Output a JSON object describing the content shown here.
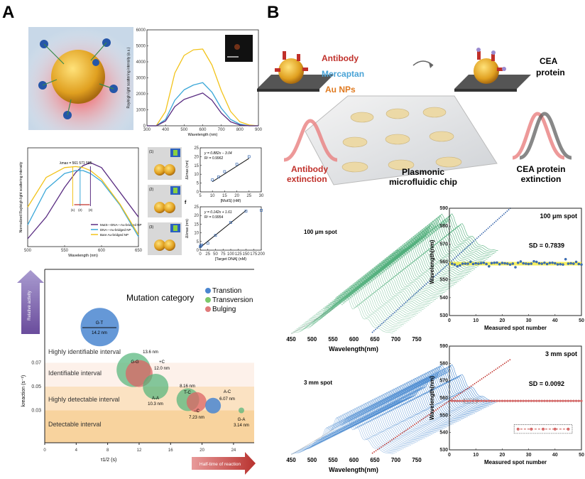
{
  "panels": {
    "a": "A",
    "b": "B"
  },
  "colors": {
    "yellow": "#f2c31a",
    "blue": "#3aa7d8",
    "purple": "#5a2d82",
    "green": "#4fae7a",
    "red": "#d9534f",
    "navy": "#2f5fa8"
  },
  "b_illustration": {
    "antibody": "Antibody",
    "mercaptan": "Mercaptan",
    "au_nps": "Au NPs",
    "cea_protein_1": "CEA",
    "cea_protein_2": "protein",
    "antibody_ext_1": "Antibody",
    "antibody_ext_2": "extinction",
    "chip_1": "Plasmonic",
    "chip_2": "microfluidic chip",
    "cea_ext_1": "CEA protein",
    "cea_ext_2": "extinction"
  },
  "chart_data": [
    {
      "type": "line",
      "xlabel": "Wavelength (nm)",
      "ylabel": "Rayleigh light scattering intensity (a.u.)",
      "xlim": [
        300,
        900
      ],
      "ylim": [
        0,
        6000
      ],
      "xticks": [
        "300",
        "400",
        "500",
        "600",
        "700",
        "800",
        "900"
      ],
      "yticks": [
        "0",
        "1000",
        "2000",
        "3000",
        "4000",
        "5000",
        "6000"
      ],
      "x": [
        300,
        350,
        400,
        450,
        500,
        550,
        600,
        650,
        700,
        750,
        800,
        850,
        900
      ],
      "series": [
        {
          "name": "yellow",
          "color": "#f2c31a",
          "values": [
            0,
            0,
            900,
            3300,
            4400,
            4750,
            4800,
            3800,
            2200,
            900,
            250,
            50,
            0
          ]
        },
        {
          "name": "blue",
          "color": "#3aa7d8",
          "values": [
            0,
            0,
            400,
            1600,
            2250,
            2550,
            2700,
            2100,
            1100,
            400,
            100,
            0,
            0
          ]
        },
        {
          "name": "purple",
          "color": "#5a2d82",
          "values": [
            0,
            0,
            300,
            1200,
            1650,
            1850,
            2050,
            1600,
            800,
            250,
            50,
            0,
            0
          ]
        }
      ]
    },
    {
      "type": "line",
      "xlabel": "Wavelength (nm)",
      "ylabel": "Normalized Rayleigh light scattering intensity",
      "xlim": [
        500,
        650
      ],
      "ylim": [
        0,
        1
      ],
      "xticks": [
        "500",
        "550",
        "600",
        "650"
      ],
      "lambda_label": "λmax = 561  571   585",
      "steps": [
        "(1)",
        "(2)",
        "(3)"
      ],
      "x": [
        500,
        525,
        550,
        565,
        575,
        585,
        600,
        625,
        650
      ],
      "series": [
        {
          "name": "MutS—DNA—Au-bridged NP",
          "color": "#5a2d82",
          "values": [
            0.08,
            0.3,
            0.6,
            0.75,
            0.82,
            0.85,
            0.8,
            0.55,
            0.3
          ]
        },
        {
          "name": "DNA—Au-bridged NP",
          "color": "#3aa7d8",
          "values": [
            0.22,
            0.58,
            0.74,
            0.77,
            0.77,
            0.74,
            0.66,
            0.42,
            0.1
          ]
        },
        {
          "name": "Bare Au-bridged NP",
          "color": "#f2c31a",
          "values": [
            0.4,
            0.7,
            0.8,
            0.81,
            0.8,
            0.77,
            0.68,
            0.43,
            0.12
          ]
        }
      ]
    },
    {
      "type": "scatter",
      "xlabel": "[MutS] (nM)",
      "ylabel": "Δλmax (nm)",
      "xlim": [
        5,
        30
      ],
      "ylim": [
        0,
        25
      ],
      "xticks": [
        "5",
        "10",
        "15",
        "20",
        "25",
        "30"
      ],
      "yticks": [
        "0",
        "5",
        "10",
        "15",
        "20",
        "25"
      ],
      "equation": "y = 0.882x − 3.04",
      "r2": "R² = 0.9962",
      "x": [
        10,
        12.5,
        15,
        20,
        25
      ],
      "values": [
        6.8,
        8.5,
        11.5,
        15.7,
        20
      ],
      "fit": [
        0.882,
        -3.04
      ],
      "images": [
        "(1)",
        "(2)",
        "(3)"
      ]
    },
    {
      "type": "scatter",
      "panel": "f",
      "xlabel": "[Target DNA] (nM)",
      "ylabel": "Δλmax (nm)",
      "xlim": [
        0,
        200
      ],
      "ylim": [
        0,
        25
      ],
      "xticks": [
        "0",
        "25",
        "50",
        "75",
        "100",
        "125",
        "150",
        "175",
        "200"
      ],
      "yticks": [
        "0",
        "5",
        "10",
        "15",
        "20",
        "25"
      ],
      "equation": "y = 0.142x + 1.61",
      "r2": "R² = 0.9954",
      "x": [
        0,
        2,
        5,
        25,
        50,
        100,
        150,
        200
      ],
      "values": [
        2,
        2.5,
        3,
        4,
        8.5,
        16,
        22.5,
        23
      ],
      "fit": [
        0.142,
        1.61
      ]
    },
    {
      "type": "scatter",
      "title": "Mutation category",
      "xlabel": "τ1/2 (s)",
      "ylabel": "kreaction (s⁻¹)",
      "xlim": [
        0,
        26.7
      ],
      "ylim": [
        0.003,
        0.148
      ],
      "xticks": [
        "0",
        "4",
        "8",
        "12",
        "16",
        "20",
        "24"
      ],
      "yticks": [
        "0.03",
        "0.05",
        "0.07"
      ],
      "legend": [
        {
          "name": "Transtion",
          "color": "#4a86d0"
        },
        {
          "name": "Transversion",
          "color": "#7cc86a"
        },
        {
          "name": "Bulging",
          "color": "#e07a7a"
        }
      ],
      "intervals": [
        "Highly identifiable interval",
        "Identifiable interval",
        "Highly detectable interval",
        "Detectable interval"
      ],
      "arrows": {
        "up": "Relative activity",
        "right": "Half-time of reaction"
      },
      "bubbles": [
        {
          "label": "G-T",
          "size": "14.2 nm",
          "t": 7.0,
          "k": 0.1,
          "cat": 0
        },
        {
          "label": "G-G",
          "size": "13.6 nm",
          "t": 11.3,
          "k": 0.064,
          "cat": 1
        },
        {
          "label": "+C",
          "size": "12.0 nm",
          "t": 12.0,
          "k": 0.061,
          "cat": 2
        },
        {
          "label": "A-A",
          "size": "10.3 nm",
          "t": 14.1,
          "k": 0.05,
          "cat": 1
        },
        {
          "label": "T-C",
          "size": "8.16 nm",
          "t": 18.2,
          "k": 0.039,
          "cat": 1
        },
        {
          "label": "−C",
          "size": "7.23 nm",
          "t": 19.3,
          "k": 0.037,
          "cat": 2
        },
        {
          "label": "A-C",
          "size": "6.07 nm",
          "t": 21.4,
          "k": 0.034,
          "cat": 0
        },
        {
          "label": "G-A",
          "size": "3.14 nm",
          "t": 25.0,
          "k": 0.03,
          "cat": 1
        }
      ]
    },
    {
      "type": "line",
      "title": "100 μm spot",
      "xlabel": "Wavelength(nm)",
      "xticks": [
        "450",
        "500",
        "550",
        "600",
        "650",
        "700",
        "750"
      ],
      "color": "#4fae7a",
      "curves": 60
    },
    {
      "type": "line",
      "title": "3 mm spot",
      "xlabel": "Wavelength(nm)",
      "xticks": [
        "450",
        "500",
        "550",
        "600",
        "650",
        "700",
        "750"
      ],
      "color": "#3f7fc8",
      "curves": 60
    },
    {
      "type": "scatter",
      "title": "100 μm spot",
      "annotation": "SD = 0.7839",
      "xlabel": "Measured spot number",
      "ylabel": "Wavelength(nm)",
      "xlim": [
        0,
        50
      ],
      "ylim": [
        530,
        590
      ],
      "xticks": [
        "0",
        "10",
        "20",
        "30",
        "40",
        "50"
      ],
      "yticks": [
        "530",
        "540",
        "550",
        "560",
        "570",
        "580",
        "590"
      ],
      "values": [
        559,
        558.5,
        557.5,
        558,
        559,
        559,
        559,
        560,
        558.8,
        559.2,
        559,
        559.3,
        559.5,
        558.8,
        557.5,
        559.3,
        559.5,
        559.6,
        558.7,
        559.4,
        559.2,
        559,
        558.5,
        559,
        557,
        559.5,
        560.2,
        559.2,
        559,
        558.8,
        559,
        560.3,
        560,
        559.2,
        559,
        559.5,
        558.8,
        559.4,
        559.5,
        559.2,
        558.6,
        558.7,
        558.5,
        561.5,
        559,
        559.2,
        559,
        560,
        558.8,
        558.5
      ]
    },
    {
      "type": "scatter",
      "title": "3 mm spot",
      "annotation": "SD = 0.0092",
      "xlabel": "Measured spot number",
      "ylabel": "Wavelength(nm)",
      "xlim": [
        0,
        50
      ],
      "ylim": [
        530,
        590
      ],
      "xticks": [
        "0",
        "10",
        "20",
        "30",
        "40",
        "50"
      ],
      "yticks": [
        "530",
        "540",
        "550",
        "560",
        "570",
        "580",
        "590"
      ],
      "constant": 558.3,
      "count": 50,
      "inset_x": [
        26,
        31,
        35.5,
        40,
        45
      ],
      "inset_value": 542
    }
  ]
}
